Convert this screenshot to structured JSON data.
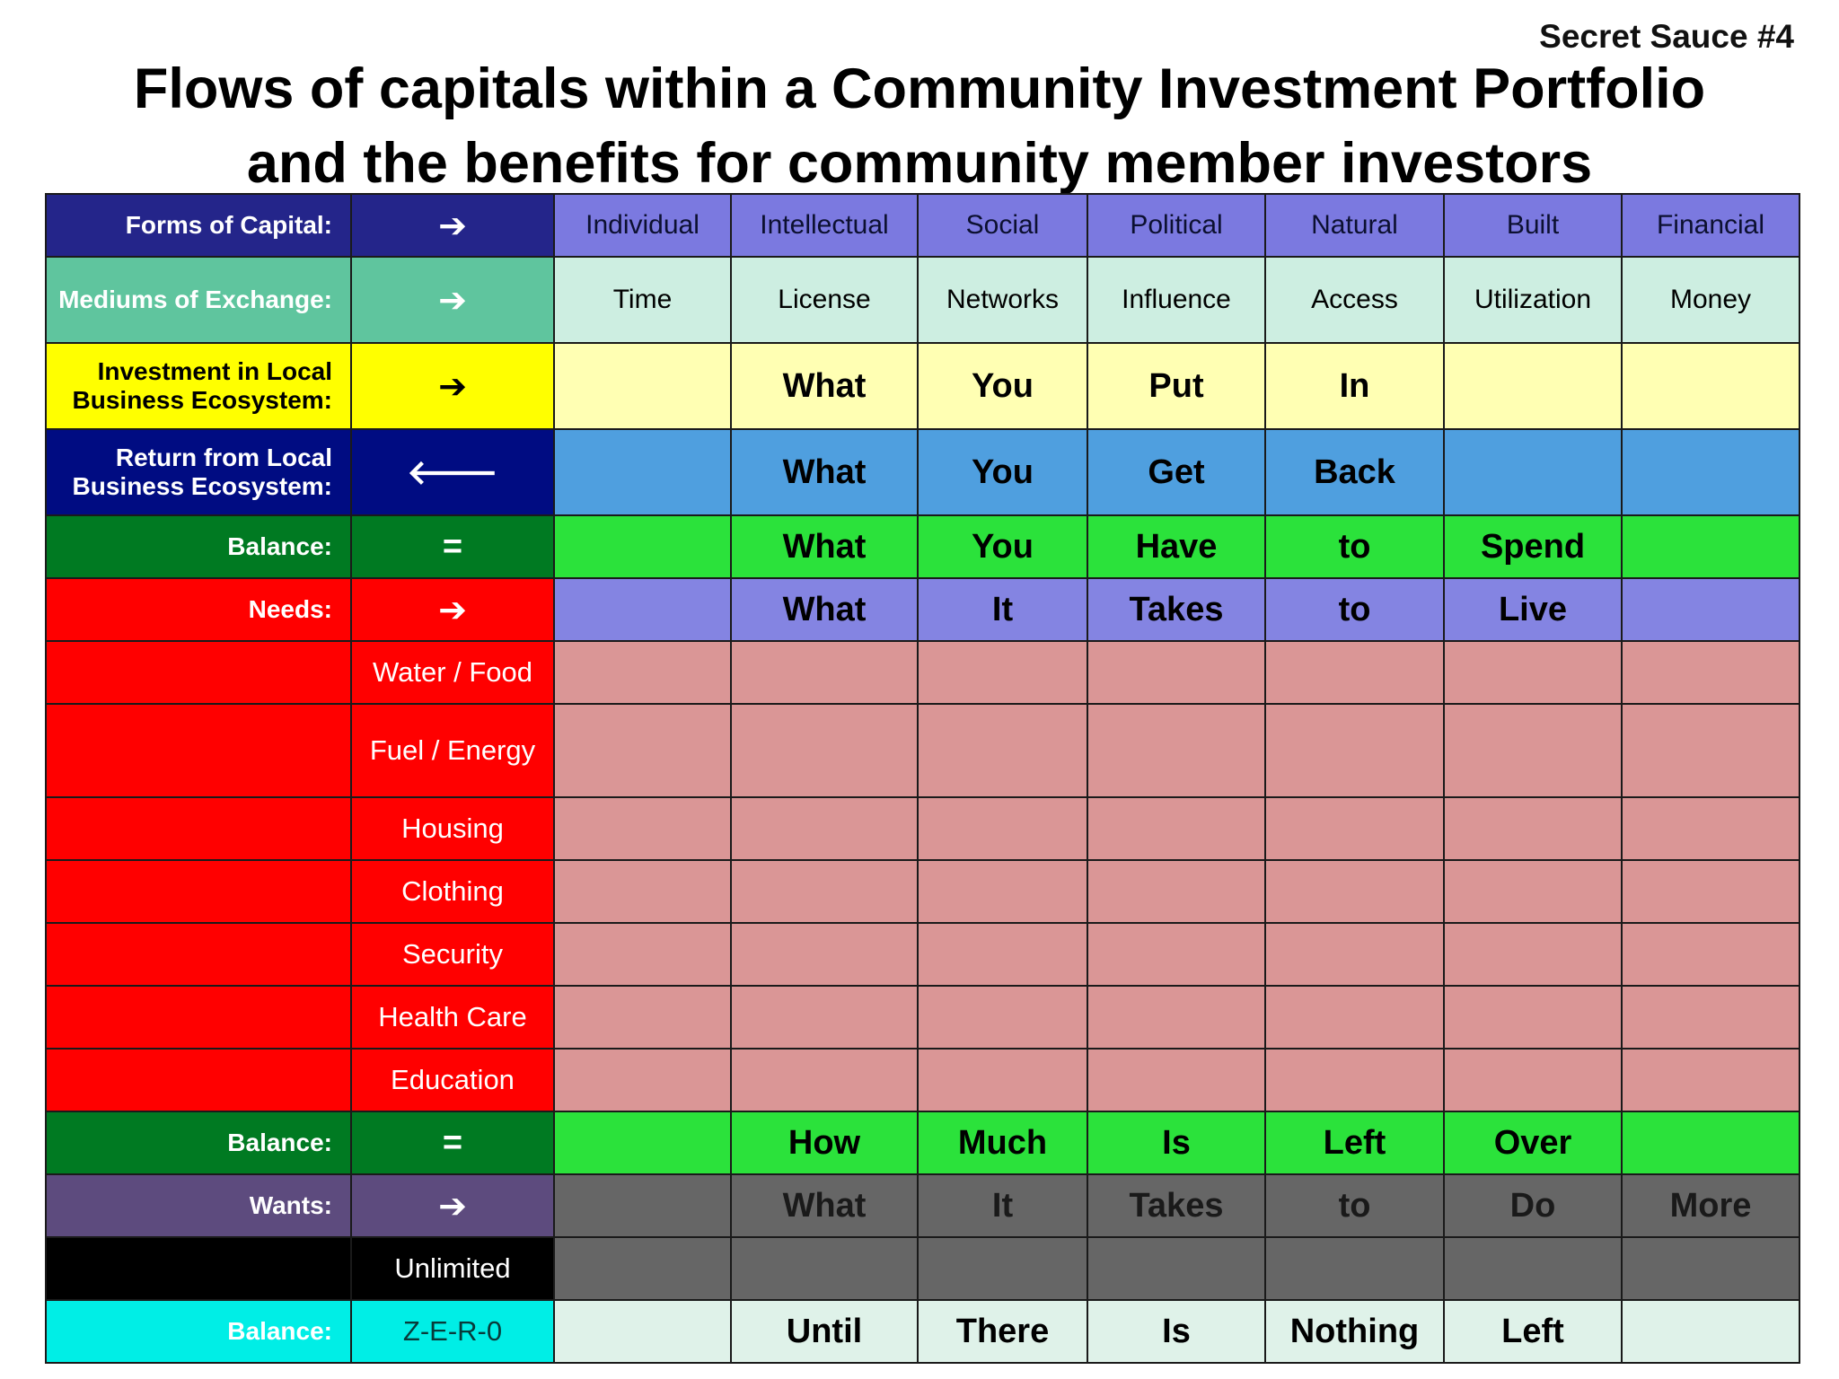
{
  "corner_label": "Secret Sauce #4",
  "title_line1": "Flows of capitals within a Community Investment Portfolio",
  "title_line2": "and the benefits for community member investors",
  "rows": [
    {
      "label": "Forms of Capital:",
      "symbol": "➔",
      "cells": [
        "Individual",
        "Intellectual",
        "Social",
        "Political",
        "Natural",
        "Built",
        "Financial"
      ],
      "label_color": "#24258a",
      "cell_color": "#7b79e0"
    },
    {
      "label": "Mediums of Exchange:",
      "symbol": "➔",
      "cells": [
        "Time",
        "License",
        "Networks",
        "Influence",
        "Access",
        "Utilization",
        "Money"
      ],
      "label_color": "#5fc59e",
      "cell_color": "#cdeee1"
    },
    {
      "label": [
        "Investment in Local",
        "Business Ecosystem:"
      ],
      "symbol": "➔",
      "cells": [
        "",
        "What",
        "You",
        "Put",
        "In",
        "",
        ""
      ],
      "label_color": "#ffff00",
      "cell_color": "#ffffb3"
    },
    {
      "label": [
        "Return from Local",
        "Business Ecosystem:"
      ],
      "symbol": "🡐",
      "cells": [
        "",
        "What",
        "You",
        "Get",
        "Back",
        "",
        ""
      ],
      "label_color": "#000c82",
      "cell_color": "#4f9fdf"
    },
    {
      "label": "Balance:",
      "symbol": "=",
      "cells": [
        "",
        "What",
        "You",
        "Have",
        "to",
        "Spend",
        ""
      ],
      "label_color": "#007a22",
      "cell_color": "#2be23b"
    },
    {
      "label": "Needs:",
      "symbol": "➔",
      "cells": [
        "",
        "What",
        "It",
        "Takes",
        "to",
        "Live",
        ""
      ],
      "label_color": "#ff0000",
      "cell_color": "#8484e2"
    },
    {
      "label": "",
      "symbol": "Water / Food",
      "cells": [
        "",
        "",
        "",
        "",
        "",
        "",
        ""
      ],
      "label_color": "#ff0000",
      "cell_color": "#da9696"
    },
    {
      "label": "",
      "symbol": "Fuel / Energy",
      "cells": [
        "",
        "",
        "",
        "",
        "",
        "",
        ""
      ],
      "label_color": "#ff0000",
      "cell_color": "#da9696"
    },
    {
      "label": "",
      "symbol": "Housing",
      "cells": [
        "",
        "",
        "",
        "",
        "",
        "",
        ""
      ],
      "label_color": "#ff0000",
      "cell_color": "#da9696"
    },
    {
      "label": "",
      "symbol": "Clothing",
      "cells": [
        "",
        "",
        "",
        "",
        "",
        "",
        ""
      ],
      "label_color": "#ff0000",
      "cell_color": "#da9696"
    },
    {
      "label": "",
      "symbol": "Security",
      "cells": [
        "",
        "",
        "",
        "",
        "",
        "",
        ""
      ],
      "label_color": "#ff0000",
      "cell_color": "#da9696"
    },
    {
      "label": "",
      "symbol": "Health Care",
      "cells": [
        "",
        "",
        "",
        "",
        "",
        "",
        ""
      ],
      "label_color": "#ff0000",
      "cell_color": "#da9696"
    },
    {
      "label": "",
      "symbol": "Education",
      "cells": [
        "",
        "",
        "",
        "",
        "",
        "",
        ""
      ],
      "label_color": "#ff0000",
      "cell_color": "#da9696"
    },
    {
      "label": "Balance:",
      "symbol": "=",
      "cells": [
        "",
        "How",
        "Much",
        "Is",
        "Left",
        "Over",
        ""
      ],
      "label_color": "#007a22",
      "cell_color": "#2be23b"
    },
    {
      "label": "Wants:",
      "symbol": "➔",
      "cells": [
        "",
        "What",
        "It",
        "Takes",
        "to",
        "Do",
        "More"
      ],
      "label_color": "#5d4b7e",
      "cell_color": "#666666"
    },
    {
      "label": "",
      "symbol": "Unlimited",
      "cells": [
        "",
        "",
        "",
        "",
        "",
        "",
        ""
      ],
      "label_color": "#000000",
      "cell_color": "#666666"
    },
    {
      "label": "Balance:",
      "symbol": "Z-E-R-0",
      "cells": [
        "",
        "Until",
        "There",
        "Is",
        "Nothing",
        "Left",
        ""
      ],
      "label_color": "#00eee6",
      "cell_color": "#dff2e9"
    }
  ]
}
